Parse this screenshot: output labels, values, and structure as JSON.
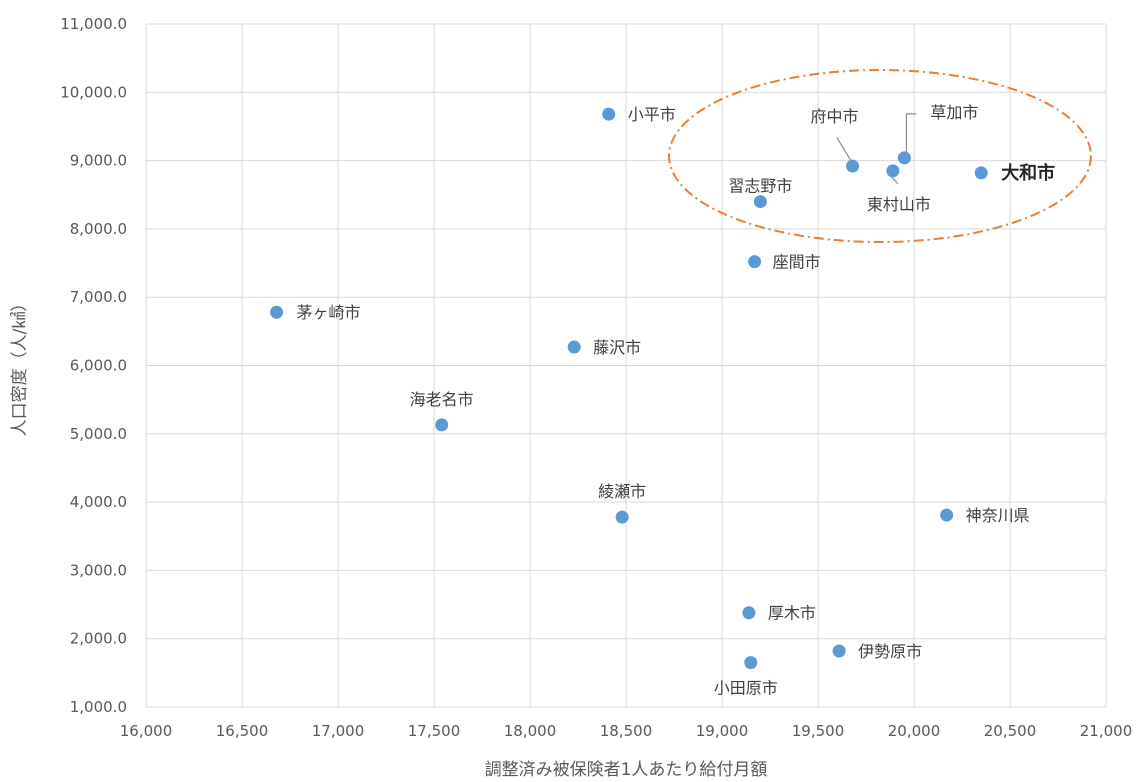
{
  "chart_data": {
    "type": "scatter",
    "xlabel": "調整済み被保険者1人あたり給付月額",
    "ylabel": "人口密度（人/㎢）",
    "xlim": [
      16000,
      21000
    ],
    "ylim": [
      1000,
      11000
    ],
    "xticks": [
      16000,
      16500,
      17000,
      17500,
      18000,
      18500,
      19000,
      19500,
      20000,
      20500,
      21000
    ],
    "xtick_labels": [
      "16,000",
      "16,500",
      "17,000",
      "17,500",
      "18,000",
      "18,500",
      "19,000",
      "19,500",
      "20,000",
      "20,500",
      "21,000"
    ],
    "yticks": [
      1000,
      2000,
      3000,
      4000,
      5000,
      6000,
      7000,
      8000,
      9000,
      10000,
      11000
    ],
    "ytick_labels": [
      "1,000.0",
      "2,000.0",
      "3,000.0",
      "4,000.0",
      "5,000.0",
      "6,000.0",
      "7,000.0",
      "8,000.0",
      "9,000.0",
      "10,000.0",
      "11,000.0"
    ],
    "grid": true,
    "marker_color": "#5b9bd5",
    "highlight_color": "#ed7d31",
    "points": [
      {
        "name": "茅ヶ崎市",
        "x": 16680,
        "y": 6780
      },
      {
        "name": "海老名市",
        "x": 17540,
        "y": 5130
      },
      {
        "name": "藤沢市",
        "x": 18230,
        "y": 6270
      },
      {
        "name": "小平市",
        "x": 18410,
        "y": 9680
      },
      {
        "name": "綾瀬市",
        "x": 18480,
        "y": 3780
      },
      {
        "name": "厚木市",
        "x": 19140,
        "y": 2380
      },
      {
        "name": "小田原市",
        "x": 19150,
        "y": 1650
      },
      {
        "name": "座間市",
        "x": 19170,
        "y": 7520
      },
      {
        "name": "習志野市",
        "x": 19200,
        "y": 8400
      },
      {
        "name": "伊勢原市",
        "x": 19610,
        "y": 1820
      },
      {
        "name": "府中市",
        "x": 19680,
        "y": 8920
      },
      {
        "name": "東村山市",
        "x": 19890,
        "y": 8850
      },
      {
        "name": "草加市",
        "x": 19950,
        "y": 9040
      },
      {
        "name": "神奈川県",
        "x": 20170,
        "y": 3810
      },
      {
        "name": "大和市",
        "x": 20350,
        "y": 8820,
        "emphasis": true
      }
    ]
  }
}
